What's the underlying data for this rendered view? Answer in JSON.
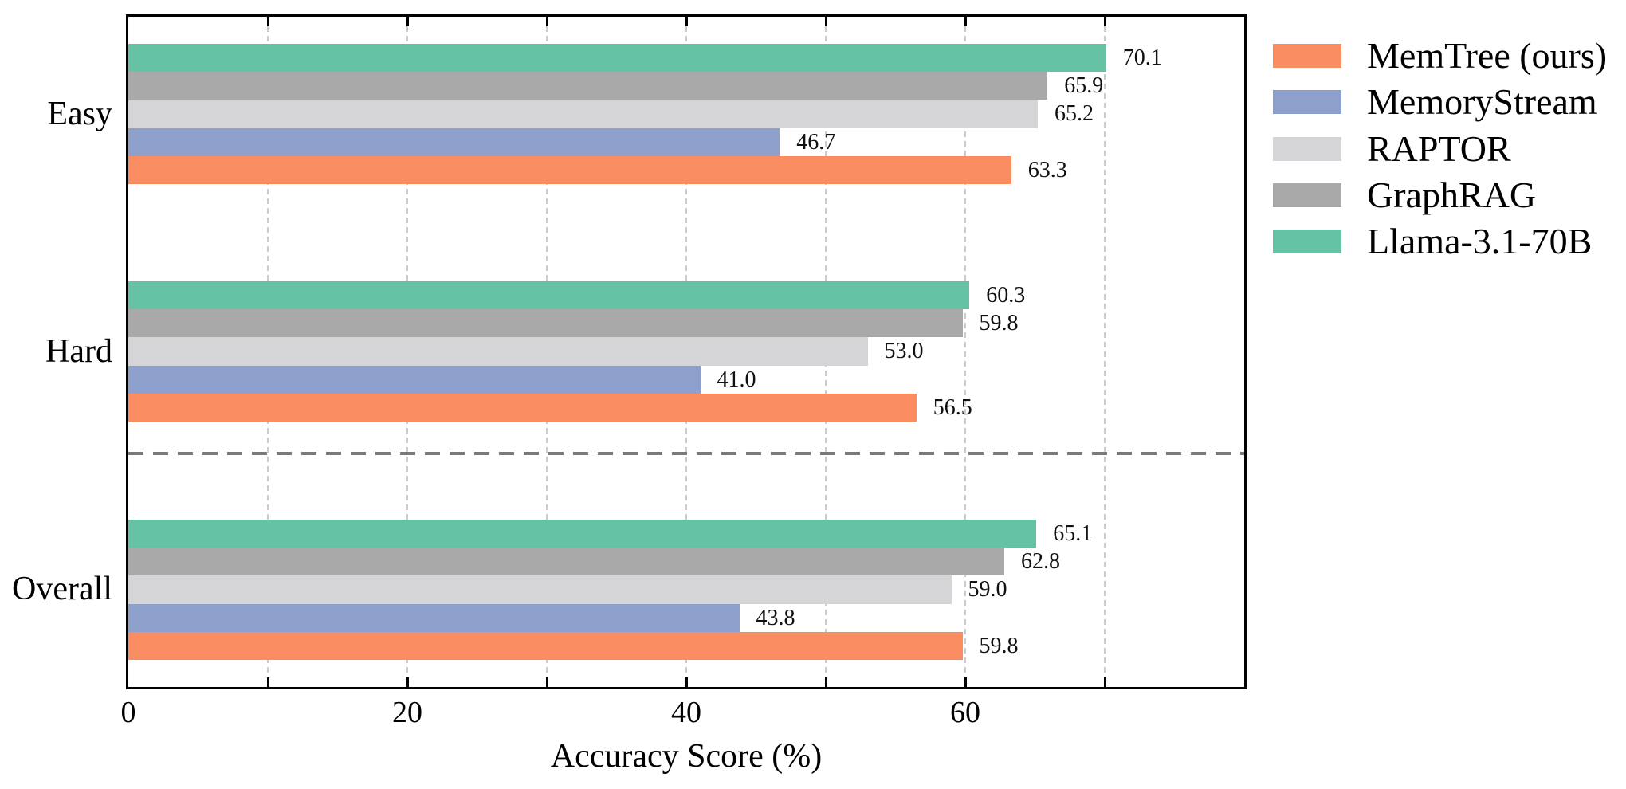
{
  "chart_data": {
    "type": "bar",
    "orientation": "horizontal",
    "title": "",
    "xlabel": "Accuracy Score (%)",
    "ylabel": "",
    "xlim": [
      0,
      80
    ],
    "xticks_major": [
      0,
      20,
      40,
      60
    ],
    "xticks_minor": [
      10,
      30,
      50,
      70
    ],
    "gridlines_x": [
      10,
      20,
      30,
      40,
      50,
      60,
      70
    ],
    "grid": "vertical-dashed",
    "categories": [
      "Easy",
      "Hard",
      "Overall"
    ],
    "series": [
      {
        "name": "MemTree (ours)",
        "color": "#FA8C62",
        "values": [
          63.3,
          56.5,
          59.8
        ]
      },
      {
        "name": "MemoryStream",
        "color": "#8CA0CB",
        "values": [
          46.7,
          41.0,
          43.8
        ]
      },
      {
        "name": "RAPTOR",
        "color": "#D5D5D7",
        "values": [
          65.2,
          53.0,
          59.0
        ]
      },
      {
        "name": "GraphRAG",
        "color": "#A9A9A9",
        "values": [
          65.9,
          59.8,
          62.8
        ]
      },
      {
        "name": "Llama-3.1-70B",
        "color": "#66C2A5",
        "values": [
          70.1,
          60.3,
          65.1
        ]
      }
    ],
    "bar_order_top_to_bottom": [
      "Llama-3.1-70B",
      "GraphRAG",
      "RAPTOR",
      "MemoryStream",
      "MemTree (ours)"
    ],
    "value_labels_shown": true,
    "separator_line": {
      "between": [
        "Hard",
        "Overall"
      ],
      "style": "dashed",
      "color": "#7a7a7a"
    },
    "legend_position": "outside-right-top",
    "axis_color": "#000000",
    "gridline_color": "#cccccc"
  }
}
